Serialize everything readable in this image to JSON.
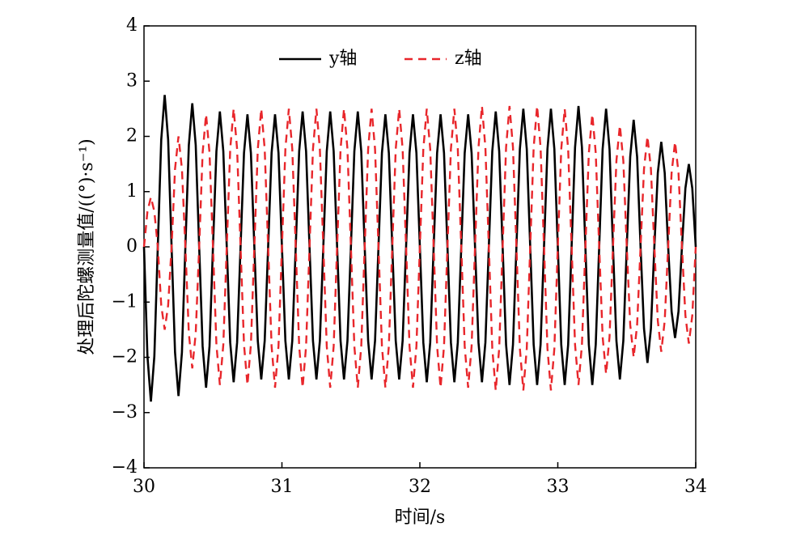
{
  "chart_data": {
    "type": "line",
    "xlabel": "时间/s",
    "ylabel": "处理后陀螺测量值/((°)·s⁻¹)",
    "x": [
      30,
      30.025,
      30.05,
      30.075,
      30.1,
      30.125,
      30.15,
      30.175,
      30.2,
      30.225,
      30.25,
      30.275,
      30.3,
      30.325,
      30.35,
      30.375,
      30.4,
      30.425,
      30.45,
      30.475,
      30.5,
      30.525,
      30.55,
      30.575,
      30.6,
      30.625,
      30.65,
      30.675,
      30.7,
      30.725,
      30.75,
      30.775,
      30.8,
      30.825,
      30.85,
      30.875,
      30.9,
      30.925,
      30.95,
      30.975,
      31,
      31.025,
      31.05,
      31.075,
      31.1,
      31.125,
      31.15,
      31.175,
      31.2,
      31.225,
      31.25,
      31.275,
      31.3,
      31.325,
      31.35,
      31.375,
      31.4,
      31.425,
      31.45,
      31.475,
      31.5,
      31.525,
      31.55,
      31.575,
      31.6,
      31.625,
      31.65,
      31.675,
      31.7,
      31.725,
      31.75,
      31.775,
      31.8,
      31.825,
      31.85,
      31.875,
      31.9,
      31.925,
      31.95,
      31.975,
      32,
      32.025,
      32.05,
      32.075,
      32.1,
      32.125,
      32.15,
      32.175,
      32.2,
      32.225,
      32.25,
      32.275,
      32.3,
      32.325,
      32.35,
      32.375,
      32.4,
      32.425,
      32.45,
      32.475,
      32.5,
      32.525,
      32.55,
      32.575,
      32.6,
      32.625,
      32.65,
      32.675,
      32.7,
      32.725,
      32.75,
      32.775,
      32.8,
      32.825,
      32.85,
      32.875,
      32.9,
      32.925,
      32.95,
      32.975,
      33,
      33.025,
      33.05,
      33.075,
      33.1,
      33.125,
      33.15,
      33.175,
      33.2,
      33.225,
      33.25,
      33.275,
      33.3,
      33.325,
      33.35,
      33.375,
      33.4,
      33.425,
      33.45,
      33.475,
      33.5,
      33.525,
      33.55,
      33.575,
      33.6,
      33.625,
      33.65,
      33.675,
      33.7,
      33.725,
      33.75,
      33.775,
      33.8,
      33.825,
      33.85,
      33.875,
      33.9,
      33.925,
      33.95,
      33.975,
      34
    ],
    "series": [
      {
        "name": "y轴",
        "color": "#000000",
        "linestyle": "solid",
        "values": [
          0,
          -1.98,
          -2.8,
          -1.98,
          0,
          1.94,
          2.75,
          1.94,
          0,
          -1.91,
          -2.7,
          -1.91,
          0,
          1.84,
          2.6,
          1.84,
          0,
          -1.8,
          -2.55,
          -1.8,
          0,
          1.73,
          2.45,
          1.73,
          0,
          -1.73,
          -2.45,
          -1.73,
          0,
          1.7,
          2.4,
          1.7,
          0,
          -1.7,
          -2.4,
          -1.7,
          0,
          1.7,
          2.4,
          1.7,
          0,
          -1.7,
          -2.4,
          -1.7,
          0,
          1.73,
          2.45,
          1.73,
          0,
          -1.7,
          -2.4,
          -1.7,
          0,
          1.73,
          2.45,
          1.73,
          0,
          -1.7,
          -2.4,
          -1.7,
          0,
          1.73,
          2.45,
          1.73,
          0,
          -1.7,
          -2.4,
          -1.7,
          0,
          1.7,
          2.4,
          1.7,
          0,
          -1.7,
          -2.4,
          -1.7,
          0,
          1.7,
          2.4,
          1.7,
          0,
          -1.73,
          -2.45,
          -1.73,
          0,
          1.7,
          2.4,
          1.7,
          0,
          -1.73,
          -2.45,
          -1.73,
          0,
          1.7,
          2.4,
          1.7,
          0,
          -1.73,
          -2.45,
          -1.73,
          0,
          1.73,
          2.45,
          1.73,
          0,
          -1.77,
          -2.5,
          -1.77,
          0,
          1.77,
          2.5,
          1.77,
          0,
          -1.77,
          -2.5,
          -1.77,
          0,
          1.77,
          2.5,
          1.77,
          0,
          -1.77,
          -2.5,
          -1.77,
          0,
          1.8,
          2.55,
          1.8,
          0,
          -1.77,
          -2.5,
          -1.77,
          0,
          1.77,
          2.5,
          1.77,
          0,
          -1.7,
          -2.4,
          -1.7,
          0,
          1.63,
          2.3,
          1.63,
          0,
          -1.48,
          -2.1,
          -1.48,
          0,
          1.34,
          1.9,
          1.34,
          0,
          -1.17,
          -1.65,
          -1.17,
          0,
          1.06,
          1.5,
          1.06,
          0
        ]
      },
      {
        "name": "z轴",
        "color": "#e8262b",
        "linestyle": "dashed",
        "values": [
          0,
          0.64,
          0.9,
          0.64,
          0,
          -1.06,
          -1.5,
          -1.06,
          0,
          1.41,
          2,
          1.41,
          0,
          -1.56,
          -2.2,
          -1.56,
          0,
          1.7,
          2.4,
          1.7,
          0,
          -1.77,
          -2.5,
          -1.77,
          0,
          1.77,
          2.5,
          1.77,
          0,
          -1.77,
          -2.5,
          -1.77,
          0,
          1.77,
          2.5,
          1.77,
          0,
          -1.8,
          -2.55,
          -1.8,
          0,
          1.77,
          2.5,
          1.77,
          0,
          -1.8,
          -2.55,
          -1.8,
          0,
          1.77,
          2.5,
          1.77,
          0,
          -1.8,
          -2.55,
          -1.8,
          0,
          1.77,
          2.5,
          1.77,
          0,
          -1.8,
          -2.55,
          -1.8,
          0,
          1.77,
          2.5,
          1.77,
          0,
          -1.8,
          -2.55,
          -1.8,
          0,
          1.77,
          2.5,
          1.77,
          0,
          -1.8,
          -2.55,
          -1.8,
          0,
          1.77,
          2.5,
          1.77,
          0,
          -1.8,
          -2.55,
          -1.8,
          0,
          1.77,
          2.5,
          1.77,
          0,
          -1.8,
          -2.55,
          -1.8,
          0,
          1.8,
          2.55,
          1.8,
          0,
          -1.84,
          -2.6,
          -1.84,
          0,
          1.8,
          2.55,
          1.8,
          0,
          -1.84,
          -2.6,
          -1.84,
          0,
          1.8,
          2.55,
          1.8,
          0,
          -1.84,
          -2.6,
          -1.84,
          0,
          1.77,
          2.5,
          1.77,
          0,
          -1.77,
          -2.5,
          -1.77,
          0,
          1.7,
          2.4,
          1.7,
          0,
          -1.63,
          -2.3,
          -1.63,
          0,
          1.56,
          2.2,
          1.56,
          0,
          -1.41,
          -2,
          -1.41,
          0,
          1.41,
          2,
          1.41,
          0,
          -1.34,
          -1.9,
          -1.34,
          0,
          1.34,
          1.9,
          1.34,
          0,
          -1.24,
          -1.75,
          -1.24,
          0
        ]
      }
    ],
    "xlim": [
      30,
      34
    ],
    "xticks": [
      30,
      31,
      32,
      33,
      34
    ],
    "ylim": [
      -4,
      4
    ],
    "yticks": [
      {
        "value": -4,
        "label": "−4"
      },
      {
        "value": -3,
        "label": "−3"
      },
      {
        "value": -2,
        "label": "−2"
      },
      {
        "value": -1,
        "label": "−1"
      },
      0,
      1,
      2,
      3,
      4
    ],
    "grid": false,
    "legend": "top"
  }
}
